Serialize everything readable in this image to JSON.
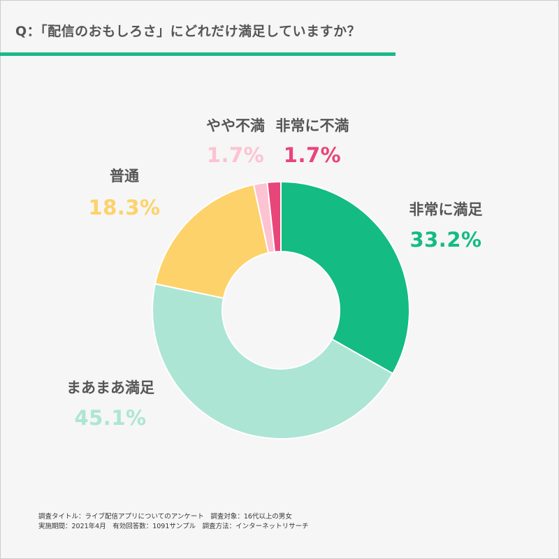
{
  "title": "Q：「配信のおもしろさ」にどれだけ満足していますか？",
  "colors": {
    "accent": "#19b98a",
    "background": "#f5f6f5"
  },
  "chart_data": {
    "type": "pie",
    "variant": "donut",
    "title": "Q：「配信のおもしろさ」にどれだけ満足していますか？",
    "slices": [
      {
        "label": "非常に満足",
        "value": 33.2,
        "display": "33.2%",
        "color": "#14bb82"
      },
      {
        "label": "まあまあ満足",
        "value": 45.1,
        "display": "45.1%",
        "color": "#ade5d5"
      },
      {
        "label": "普通",
        "value": 18.3,
        "display": "18.3%",
        "color": "#fed26a"
      },
      {
        "label": "やや不満",
        "value": 1.7,
        "display": "1.7%",
        "color": "#fcc3d3"
      },
      {
        "label": "非常に不満",
        "value": 1.7,
        "display": "1.7%",
        "color": "#e8457a"
      }
    ],
    "legend": "none",
    "data_labels": "outside"
  },
  "footer": {
    "line1": "調査タイトル：ライブ配信アプリについてのアンケート　調査対象：16代以上の男女",
    "line2": "実施期間：2021年4月　有効回答数：1091サンプル　調査方法：インターネットリサーチ"
  }
}
